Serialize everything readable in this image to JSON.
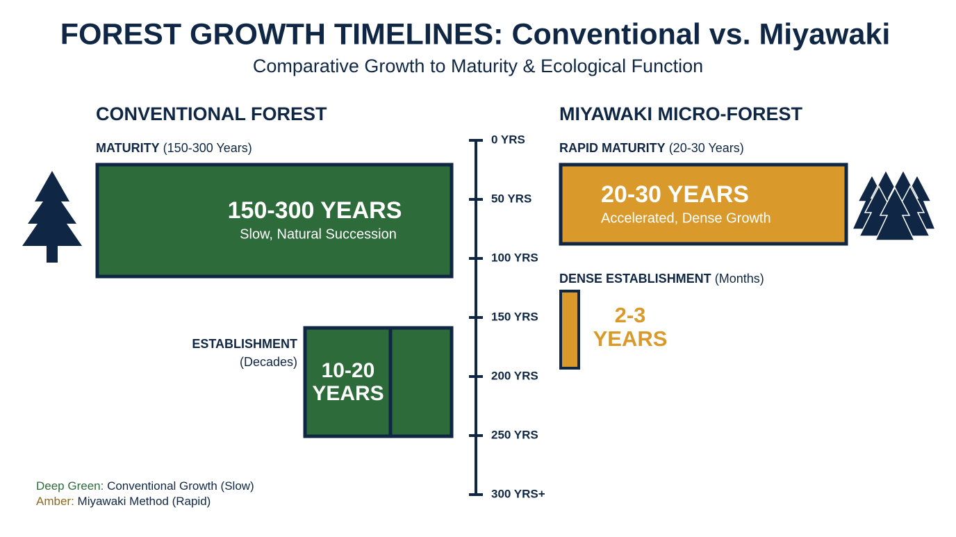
{
  "header": {
    "title": "FOREST GROWTH TIMELINES: Conventional vs. Miyawaki",
    "subtitle": "Comparative Growth to Maturity & Ecological Function"
  },
  "conventional": {
    "heading": "CONVENTIONAL FOREST",
    "maturity": {
      "label": "MATURITY",
      "note": "(150-300 Years)",
      "value": "150-300 YEARS",
      "caption": "Slow, Natural Succession"
    },
    "establishment": {
      "label": "ESTABLISHMENT",
      "note": "(Decades)",
      "value": [
        "10-20",
        "YEARS"
      ]
    }
  },
  "miyawaki": {
    "heading": "MIYAWAKI MICRO-FOREST",
    "maturity": {
      "label": "RAPID MATURITY",
      "note": "(20-30 Years)",
      "value": "20-30 YEARS",
      "caption": "Accelerated, Dense Growth"
    },
    "establishment": {
      "label": "DENSE ESTABLISHMENT",
      "note": "(Months)",
      "value": [
        "2-3",
        "YEARS"
      ]
    }
  },
  "timeline": {
    "ticks": [
      "0 YRS",
      "50 YRS",
      "100 YRS",
      "150 YRS",
      "200 YRS",
      "250 YRS",
      "300 YRS+"
    ]
  },
  "legend": [
    {
      "key": "Deep Green:",
      "text": "Conventional Growth (Slow)"
    },
    {
      "key": "Amber:",
      "text": "Miyawaki Method (Rapid)"
    }
  ]
}
